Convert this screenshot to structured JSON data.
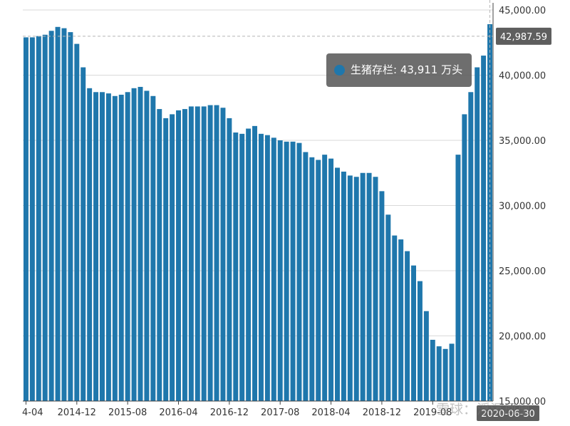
{
  "chart_data": {
    "type": "bar",
    "title": "",
    "series_name": "生猪存栏",
    "unit": "万头",
    "ylim": [
      15000,
      45000
    ],
    "y_ticks": [
      "15,000.00",
      "20,000.00",
      "25,000.00",
      "30,000.00",
      "35,000.00",
      "40,000.00",
      "45,000.00"
    ],
    "y_tick_values": [
      15000,
      20000,
      25000,
      30000,
      35000,
      40000,
      45000
    ],
    "x_tick_labels": [
      "4-04",
      "2014-12",
      "2015-08",
      "2016-04",
      "2016-12",
      "2017-08",
      "2018-04",
      "2018-12",
      "2019-08"
    ],
    "x_tick_indices": [
      0,
      8,
      16,
      24,
      32,
      40,
      48,
      56,
      64
    ],
    "values": [
      42900,
      42900,
      43000,
      43100,
      43400,
      43700,
      43600,
      43300,
      42400,
      40600,
      39000,
      38700,
      38700,
      38600,
      38400,
      38500,
      38700,
      39000,
      39100,
      38800,
      38400,
      37400,
      36700,
      37000,
      37300,
      37400,
      37600,
      37600,
      37600,
      37700,
      37700,
      37500,
      36700,
      35600,
      35500,
      35900,
      36100,
      35500,
      35400,
      35200,
      35000,
      34900,
      34900,
      34800,
      34100,
      33700,
      33500,
      33900,
      33600,
      32900,
      32600,
      32300,
      32200,
      32500,
      32500,
      32200,
      31100,
      29300,
      27700,
      27400,
      26500,
      25400,
      24200,
      21900,
      19700,
      19200,
      19000,
      19400,
      33900,
      37000,
      38700,
      40600,
      41500,
      43911
    ],
    "crosshair_value_label": "42,987.59",
    "crosshair_value": 42987.59,
    "x_axis_pointer_label": "2020-06-30",
    "tooltip": {
      "name": "生猪存栏",
      "value": "43,911",
      "unit": "万头"
    }
  },
  "watermark": "雪球：浮沉凤凰",
  "colors": {
    "bar": "#1f77ac",
    "grid": "#d9d9d9",
    "axis": "#444444",
    "label_bg": "#5e5e5e"
  }
}
